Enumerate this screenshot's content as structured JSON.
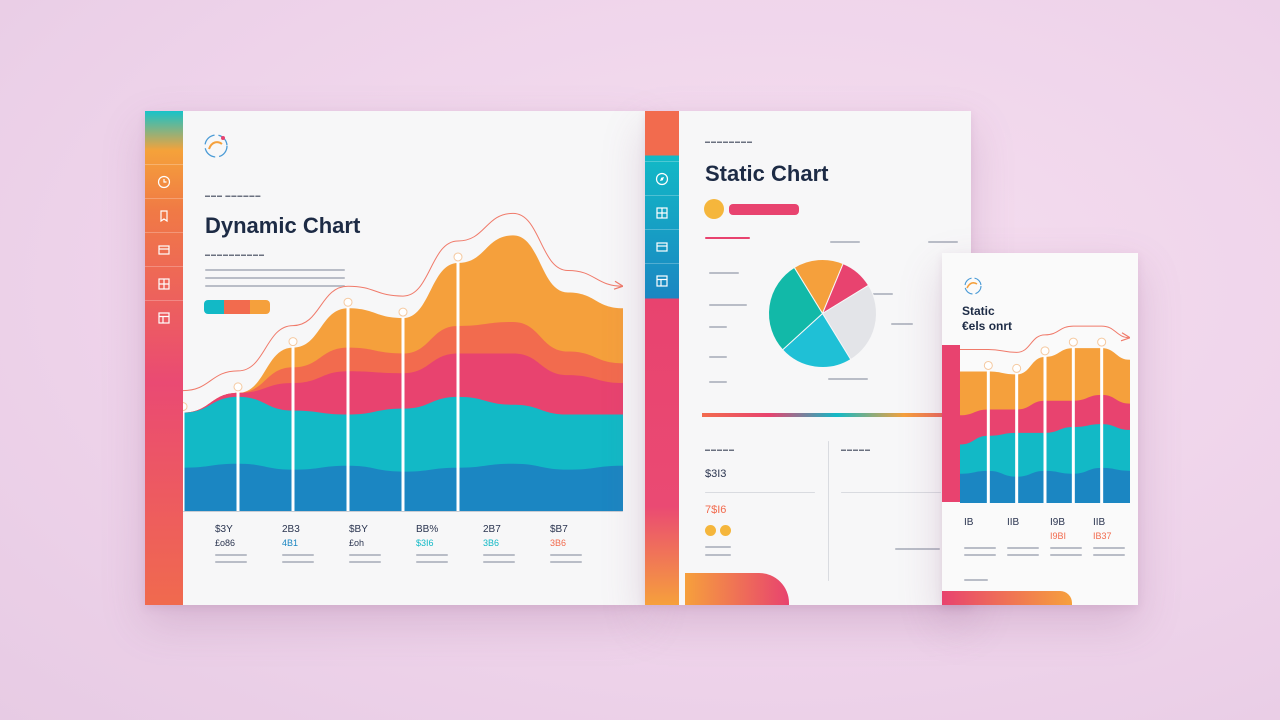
{
  "colors": {
    "teal": "#12b9c6",
    "blue": "#1b86c2",
    "orange": "#f5a03c",
    "coral": "#f26b4e",
    "pink": "#e8436f",
    "navy": "#1d2b45"
  },
  "dynamic": {
    "title": "Dynamic Chart",
    "stats": [
      {
        "top": "$3Y",
        "mid": "£o86",
        "color": "#2b3550"
      },
      {
        "top": "2B3",
        "mid": "4B1",
        "color": "#1b86c2"
      },
      {
        "top": "$BY",
        "mid": "£oh",
        "color": "#2b3550"
      },
      {
        "top": "BB%",
        "mid": "$3I6",
        "color": "#12b9c6"
      },
      {
        "top": "2B7",
        "mid": "3B6",
        "color": "#12b9c6"
      },
      {
        "top": "$B7",
        "mid": "3B6",
        "color": "#f26b4e"
      }
    ],
    "sidebar_icons": [
      "clock-icon",
      "bookmark-icon",
      "panel-icon",
      "grid-icon",
      "layout-icon"
    ]
  },
  "static": {
    "title": "Static Chart",
    "stats": {
      "a": "$3I3",
      "b": "7$I6"
    },
    "sidebar_icons": [
      "compass-icon",
      "grid-icon",
      "panel-icon",
      "layout-icon"
    ]
  },
  "mini": {
    "title_line1": "Static",
    "title_line2": "€els onrt",
    "stats": [
      {
        "top": "IB",
        "mid": "",
        "color": "#2b3550"
      },
      {
        "top": "IIB",
        "mid": "",
        "color": "#2b3550"
      },
      {
        "top": "I9B",
        "mid": "I9BI",
        "color": "#f26b4e"
      },
      {
        "top": "IIB",
        "mid": "IB37",
        "color": "#f26b4e"
      }
    ]
  },
  "chart_data": [
    {
      "type": "area",
      "stacked": true,
      "x": [
        0,
        1,
        2,
        3,
        4,
        5,
        6,
        7,
        8
      ],
      "series": [
        {
          "color": "#1b86c2",
          "values": [
            22,
            24,
            21,
            23,
            20,
            22,
            24,
            21,
            23
          ]
        },
        {
          "color": "#12b9c6",
          "values": [
            28,
            34,
            30,
            26,
            32,
            36,
            30,
            28,
            26
          ]
        },
        {
          "color": "#e8436f",
          "values": [
            0,
            2,
            14,
            22,
            18,
            22,
            26,
            20,
            16
          ]
        },
        {
          "color": "#f26b4e",
          "values": [
            0,
            0,
            8,
            12,
            10,
            14,
            16,
            12,
            10
          ]
        },
        {
          "color": "#f5a03c",
          "values": [
            0,
            0,
            10,
            20,
            18,
            32,
            44,
            30,
            28
          ]
        }
      ],
      "ylim": [
        0,
        160
      ],
      "grid": false,
      "legend": "none"
    },
    {
      "type": "pie",
      "slices": [
        {
          "value": 15,
          "color": "#f5a03c"
        },
        {
          "value": 10,
          "color": "#e8436f"
        },
        {
          "value": 25,
          "color": "#e3e4e8"
        },
        {
          "value": 22,
          "color": "#1fc0d6"
        },
        {
          "value": 28,
          "color": "#12b9a8"
        }
      ]
    },
    {
      "type": "area",
      "stacked": true,
      "x": [
        0,
        1,
        2,
        3,
        4,
        5,
        6
      ],
      "series": [
        {
          "color": "#1b86c2",
          "values": [
            20,
            22,
            18,
            22,
            20,
            24,
            22
          ]
        },
        {
          "color": "#12b9c6",
          "values": [
            20,
            24,
            30,
            26,
            32,
            30,
            28
          ]
        },
        {
          "color": "#e8436f",
          "values": [
            20,
            18,
            16,
            22,
            18,
            20,
            18
          ]
        },
        {
          "color": "#f5a03c",
          "values": [
            30,
            26,
            24,
            30,
            36,
            32,
            30
          ]
        }
      ],
      "ylim": [
        0,
        130
      ]
    }
  ]
}
